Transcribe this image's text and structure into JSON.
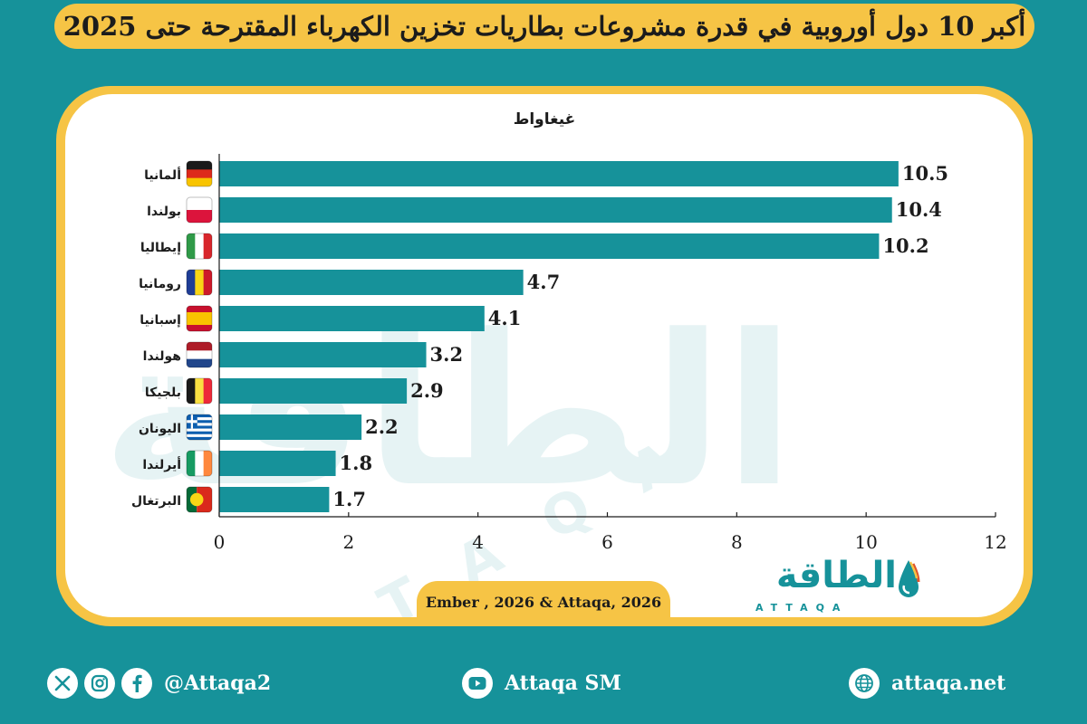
{
  "title": "أكبر 10 دول أوروبية في قدرة مشروعات بطاريات تخزين الكهرباء المقترحة حتى 2025",
  "source": "Ember , 2026 & Attaqa, 2026",
  "brand": {
    "name_ar": "الطاقة",
    "name_en": "ATTAQA"
  },
  "footer": {
    "handle": "@Attaqa2",
    "youtube": "Attaqa SM",
    "website": "attaqa.net"
  },
  "icons": [
    "x-icon",
    "instagram-icon",
    "facebook-icon",
    "youtube-icon",
    "globe-icon"
  ],
  "colors": {
    "background": "#16929a",
    "accent": "#f6c445",
    "bar": "#16929a",
    "card": "#ffffff"
  },
  "chart_data": {
    "type": "bar",
    "orientation": "horizontal",
    "unit_label": "غيغاواط",
    "categories": [
      "ألمانيا",
      "بولندا",
      "إيطاليا",
      "رومانيا",
      "إسبانيا",
      "هولندا",
      "بلجيكا",
      "اليونان",
      "أيرلندا",
      "البرتغال"
    ],
    "flags": [
      "de",
      "pl",
      "it",
      "ro",
      "es",
      "nl",
      "be",
      "gr",
      "ie",
      "pt"
    ],
    "values": [
      10.5,
      10.4,
      10.2,
      4.7,
      4.1,
      3.2,
      2.9,
      2.2,
      1.8,
      1.7
    ],
    "value_labels": [
      "10.5",
      "10.4",
      "10.2",
      "4.7",
      "4.1",
      "3.2",
      "2.9",
      "2.2",
      "1.8",
      "1.7"
    ],
    "xlim": [
      0,
      12
    ],
    "xticks": [
      "0",
      "2",
      "4",
      "6",
      "8",
      "10",
      "12"
    ],
    "grid": false,
    "legend": "none"
  }
}
